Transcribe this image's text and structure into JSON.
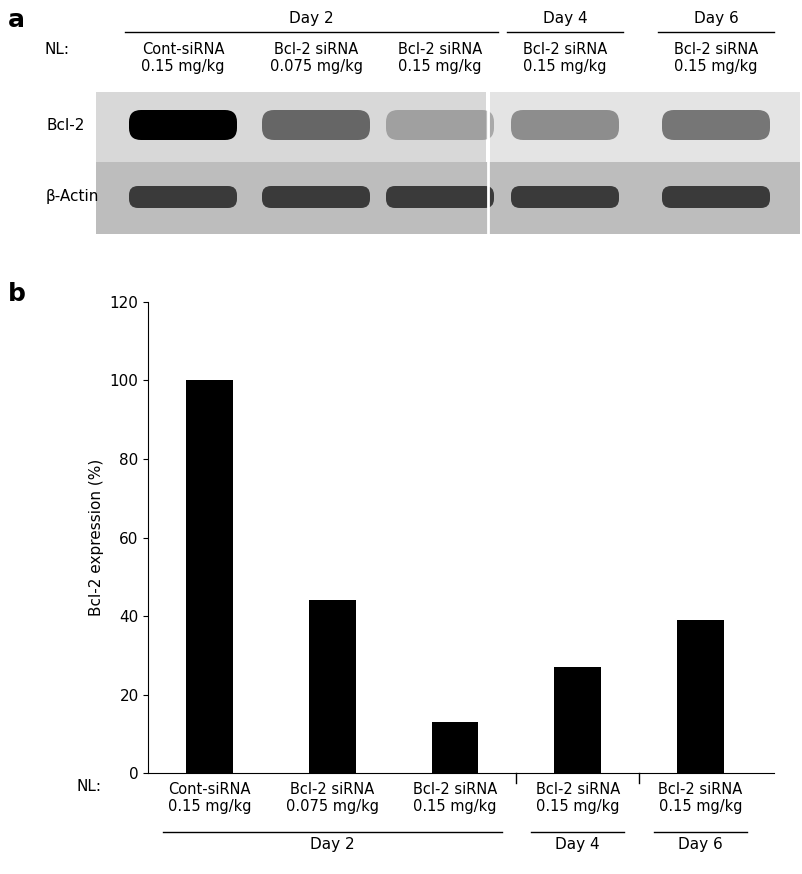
{
  "chart_data": {
    "type": "bar",
    "panel_label": "b",
    "categories_prefix": "NL:",
    "categories": [
      "Cont-siRNA\n0.15 mg/kg",
      "Bcl-2 siRNA\n0.075 mg/kg",
      "Bcl-2 siRNA\n0.15 mg/kg",
      "Bcl-2 siRNA\n0.15 mg/kg",
      "Bcl-2 siRNA\n0.15 mg/kg"
    ],
    "category_groups": [
      "Day 2",
      "Day 2",
      "Day 2",
      "Day 4",
      "Day 6"
    ],
    "values": [
      100,
      44,
      13,
      27,
      39
    ],
    "color": "#000000",
    "y_label": "Bcl-2 expression (%)",
    "ylim": [
      0,
      120
    ],
    "yticks": [
      0,
      20,
      40,
      60,
      80,
      100,
      120
    ],
    "grid": false
  },
  "blot": {
    "panel_label": "a",
    "prefix": "NL:",
    "lanes": [
      "Cont-siRNA\n0.15 mg/kg",
      "Bcl-2 siRNA\n0.075 mg/kg",
      "Bcl-2 siRNA\n0.15 mg/kg",
      "Bcl-2 siRNA\n0.15 mg/kg",
      "Bcl-2 siRNA\n0.15 mg/kg"
    ],
    "lane_groups": [
      "Day 2",
      "Day 2",
      "Day 2",
      "Day 4",
      "Day 6"
    ],
    "rows": [
      "Bcl-2",
      "β-Actin"
    ]
  }
}
